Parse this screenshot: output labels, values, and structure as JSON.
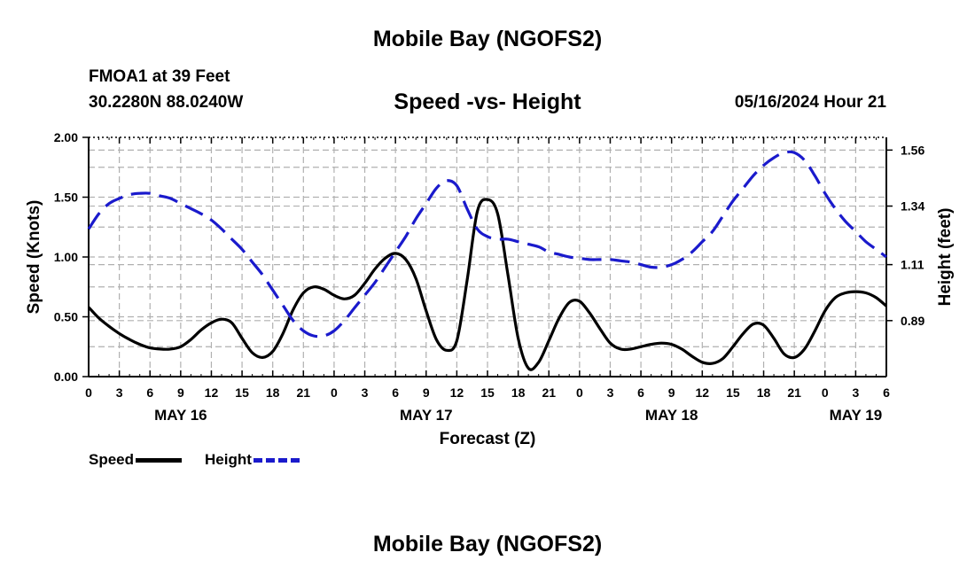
{
  "page": {
    "title": "Mobile Bay (NGOFS2)",
    "station": "FMOA1 at 39 Feet",
    "coordinates": "30.2280N  88.0240W",
    "subtitle": "Speed -vs- Height",
    "timestamp": "05/16/2024 Hour 21",
    "footer_title": "Mobile Bay (NGOFS2)"
  },
  "colors": {
    "speed": "#000000",
    "height": "#1a1acc",
    "grid": "#b0b0b0"
  },
  "legend": [
    {
      "label": "Speed",
      "style": "solid"
    },
    {
      "label": "Height",
      "style": "dashed"
    }
  ],
  "chart_data": {
    "type": "line",
    "title": "Speed -vs- Height",
    "xlabel": "Forecast (Z)",
    "ylabel": "Speed (Knots)",
    "y2label": "Height (feet)",
    "xlim": [
      0,
      78
    ],
    "ylim": [
      0,
      2.0
    ],
    "y2lim": [
      0.67,
      1.61
    ],
    "grid": true,
    "x_ticks": [
      0,
      3,
      6,
      9,
      12,
      15,
      18,
      21,
      24,
      27,
      30,
      33,
      36,
      39,
      42,
      45,
      48,
      51,
      54,
      57,
      60,
      63,
      66,
      69,
      72,
      75,
      78
    ],
    "x_tick_labels": [
      "0",
      "3",
      "6",
      "9",
      "12",
      "15",
      "18",
      "21",
      "0",
      "3",
      "6",
      "9",
      "12",
      "15",
      "18",
      "21",
      "0",
      "3",
      "6",
      "9",
      "12",
      "15",
      "18",
      "21",
      "0",
      "3",
      "6"
    ],
    "day_labels": [
      {
        "hour": 9,
        "label": "MAY 16"
      },
      {
        "hour": 33,
        "label": "MAY 17"
      },
      {
        "hour": 57,
        "label": "MAY 18"
      },
      {
        "hour": 75,
        "label": "MAY 19"
      }
    ],
    "y_ticks": [
      0.0,
      0.5,
      1.0,
      1.5,
      2.0
    ],
    "y_tick_labels": [
      "0.00",
      "0.50",
      "1.00",
      "1.50",
      "2.00"
    ],
    "y2_ticks": [
      0.89,
      1.11,
      1.34,
      1.56
    ],
    "y2_tick_labels": [
      "0.89",
      "1.11",
      "1.34",
      "1.56"
    ],
    "series": [
      {
        "name": "Speed",
        "axis": "left",
        "style": "solid",
        "x": [
          0,
          1,
          2,
          3,
          4,
          5,
          6,
          7,
          8,
          9,
          10,
          11,
          12,
          13,
          14,
          15,
          16,
          17,
          18,
          19,
          20,
          21,
          22,
          23,
          24,
          25,
          26,
          27,
          28,
          29,
          30,
          31,
          32,
          33,
          34,
          35,
          36,
          37,
          38,
          39,
          40,
          41,
          42,
          43,
          44,
          45,
          46,
          47,
          48,
          49,
          50,
          51,
          52,
          53,
          54,
          55,
          56,
          57,
          58,
          59,
          60,
          61,
          62,
          63,
          64,
          65,
          66,
          67,
          68,
          69,
          70,
          71,
          72,
          73,
          74,
          75,
          76,
          77,
          78
        ],
        "values": [
          0.58,
          0.49,
          0.42,
          0.36,
          0.31,
          0.27,
          0.24,
          0.23,
          0.23,
          0.25,
          0.31,
          0.39,
          0.45,
          0.48,
          0.45,
          0.32,
          0.2,
          0.16,
          0.21,
          0.36,
          0.56,
          0.7,
          0.75,
          0.73,
          0.68,
          0.65,
          0.68,
          0.78,
          0.9,
          0.99,
          1.03,
          0.98,
          0.82,
          0.55,
          0.31,
          0.22,
          0.3,
          0.8,
          1.38,
          1.48,
          1.36,
          0.85,
          0.32,
          0.07,
          0.12,
          0.3,
          0.49,
          0.62,
          0.63,
          0.53,
          0.4,
          0.28,
          0.23,
          0.23,
          0.25,
          0.27,
          0.28,
          0.27,
          0.23,
          0.17,
          0.12,
          0.11,
          0.15,
          0.25,
          0.36,
          0.44,
          0.43,
          0.32,
          0.19,
          0.16,
          0.23,
          0.38,
          0.55,
          0.66,
          0.7,
          0.71,
          0.7,
          0.66,
          0.59
        ]
      },
      {
        "name": "Height",
        "axis": "right",
        "style": "dashed",
        "x": [
          0,
          1,
          2,
          3,
          4,
          5,
          6,
          7,
          8,
          9,
          10,
          11,
          12,
          13,
          14,
          15,
          16,
          17,
          18,
          19,
          20,
          21,
          22,
          23,
          24,
          25,
          26,
          27,
          28,
          29,
          30,
          31,
          32,
          33,
          34,
          35,
          36,
          37,
          38,
          39,
          40,
          41,
          42,
          43,
          44,
          45,
          46,
          47,
          48,
          49,
          50,
          51,
          52,
          53,
          54,
          55,
          56,
          57,
          58,
          59,
          60,
          61,
          62,
          63,
          64,
          65,
          66,
          67,
          68,
          69,
          70,
          71,
          72,
          73,
          74,
          75,
          76,
          77,
          78
        ],
        "values": [
          1.25,
          1.31,
          1.35,
          1.37,
          1.385,
          1.39,
          1.39,
          1.38,
          1.37,
          1.35,
          1.33,
          1.31,
          1.285,
          1.25,
          1.21,
          1.17,
          1.12,
          1.07,
          1.01,
          0.95,
          0.89,
          0.85,
          0.83,
          0.83,
          0.85,
          0.89,
          0.94,
          0.99,
          1.04,
          1.1,
          1.16,
          1.22,
          1.29,
          1.35,
          1.41,
          1.44,
          1.42,
          1.33,
          1.25,
          1.22,
          1.21,
          1.21,
          1.2,
          1.19,
          1.18,
          1.16,
          1.15,
          1.14,
          1.135,
          1.13,
          1.13,
          1.13,
          1.125,
          1.12,
          1.11,
          1.1,
          1.1,
          1.11,
          1.13,
          1.16,
          1.2,
          1.24,
          1.3,
          1.36,
          1.41,
          1.46,
          1.5,
          1.53,
          1.55,
          1.55,
          1.52,
          1.46,
          1.39,
          1.33,
          1.28,
          1.24,
          1.2,
          1.17,
          1.14
        ]
      }
    ]
  }
}
